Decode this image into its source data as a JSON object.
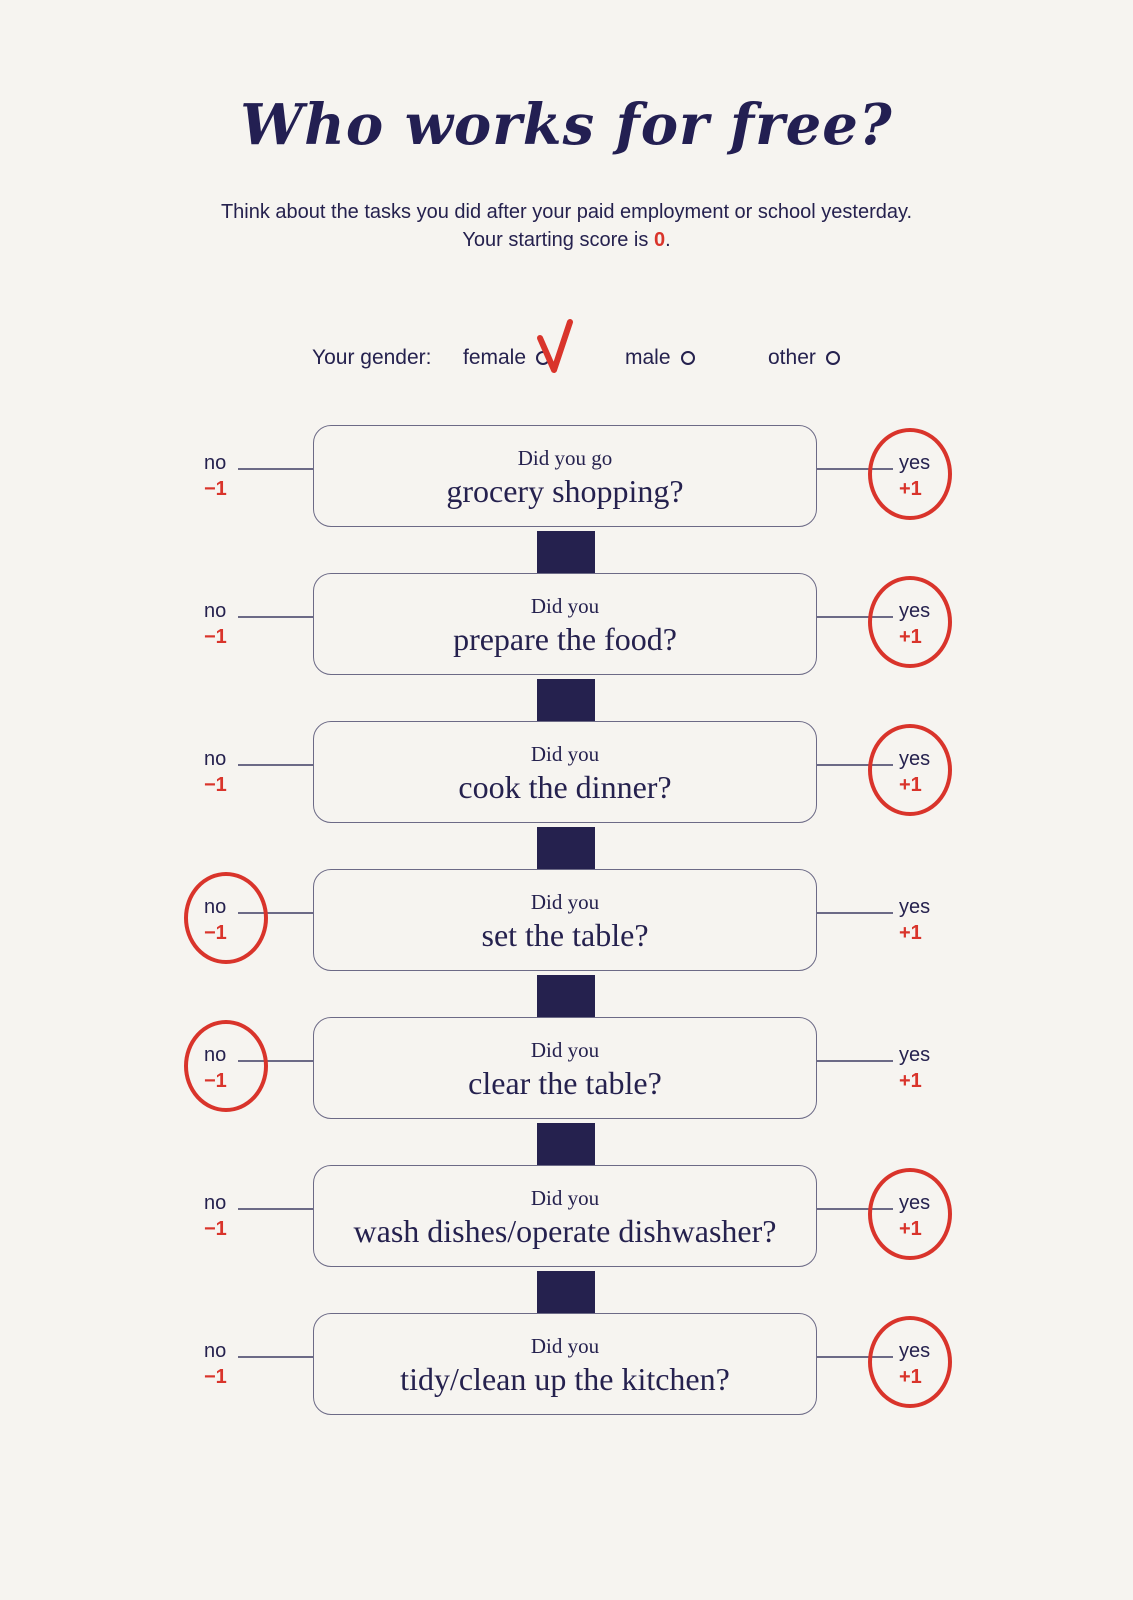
{
  "title": "Who works for free?",
  "intro": {
    "line1": "Think about the tasks you did after your paid employment or school yesterday.",
    "line2_prefix": "Your starting score is ",
    "starting_score": "0",
    "line2_suffix": "."
  },
  "gender": {
    "label": "Your gender:",
    "options": [
      "female",
      "male",
      "other"
    ],
    "selected": "female"
  },
  "answer_labels": {
    "no": "no",
    "no_value": "−1",
    "yes": "yes",
    "yes_value": "+1"
  },
  "questions": [
    {
      "prefix": "Did you go",
      "task": "grocery shopping?",
      "marked": "yes"
    },
    {
      "prefix": "Did you",
      "task": "prepare the food?",
      "marked": "yes"
    },
    {
      "prefix": "Did you",
      "task": "cook the dinner?",
      "marked": "yes"
    },
    {
      "prefix": "Did you",
      "task": "set the table?",
      "marked": "no"
    },
    {
      "prefix": "Did you",
      "task": "clear the table?",
      "marked": "no"
    },
    {
      "prefix": "Did you",
      "task": "wash dishes/operate dishwasher?",
      "marked": "yes"
    },
    {
      "prefix": "Did you",
      "task": "tidy/clean up the kitchen?",
      "marked": "yes"
    }
  ],
  "colors": {
    "ink": "#25214e",
    "mark": "#d9342b",
    "paper": "#f6f4f0"
  }
}
